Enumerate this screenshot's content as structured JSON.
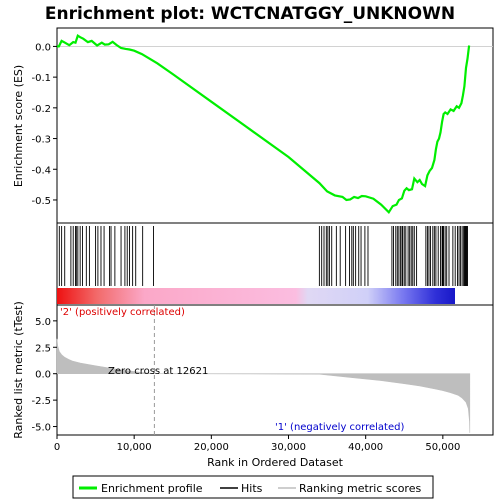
{
  "chart_data": {
    "type": "line",
    "title": "Enrichment plot: WCTCNATGGY_UNKNOWN",
    "xlabel": "Rank in Ordered Dataset",
    "ylabel_top": "Enrichment score (ES)",
    "ylabel_bottom": "Ranked list metric (tTest)",
    "x_ticks": [
      "0",
      "10,000",
      "20,000",
      "30,000",
      "40,000",
      "50,000"
    ],
    "x_tick_values": [
      0,
      10000,
      20000,
      30000,
      40000,
      50000
    ],
    "es_y_ticks": [
      "0.0",
      "-0.1",
      "-0.2",
      "-0.3",
      "-0.4",
      "-0.5"
    ],
    "es_y_tick_values": [
      0.0,
      -0.1,
      -0.2,
      -0.3,
      -0.4,
      -0.5
    ],
    "metric_y_ticks": [
      "5.0",
      "2.5",
      "0.0",
      "-2.5",
      "-5.0"
    ],
    "metric_y_tick_values": [
      5.0,
      2.5,
      0.0,
      -2.5,
      -5.0
    ],
    "xlim": [
      0,
      56500
    ],
    "es_ylim": [
      -0.575,
      0.06
    ],
    "metric_ylim": [
      -5.8,
      6.5
    ],
    "zero_cross_rank": 12621,
    "zero_cross_label": "Zero cross at 12621",
    "positive_label": "'2' (positively correlated)",
    "negative_label": "'1' (negatively correlated)",
    "legend": [
      "Enrichment profile",
      "Hits",
      "Ranking metric scores"
    ],
    "colors": {
      "enrichment": "#00ee00",
      "hits": "#000000",
      "metric_fill": "#bebebe",
      "positive_text": "#dd0000",
      "negative_text": "#0000cc"
    },
    "series": [
      {
        "name": "Enrichment profile",
        "x": [
          0,
          250,
          600,
          900,
          1600,
          2100,
          2400,
          2700,
          3000,
          3400,
          4000,
          4500,
          5200,
          5800,
          6200,
          6700,
          7200,
          7700,
          8300,
          8900,
          9400,
          10000,
          11000,
          12000,
          13000,
          15000,
          20000,
          25000,
          30000,
          34000,
          35000,
          36000,
          37000,
          37500,
          38000,
          38500,
          39000,
          39500,
          40000,
          40500,
          41000,
          42000,
          43000,
          43500,
          44000,
          44300,
          44700,
          45000,
          45300,
          45600,
          46000,
          46300,
          46700,
          47000,
          47300,
          47700,
          48000,
          48300,
          48600,
          48900,
          49100,
          49300,
          49500,
          49700,
          49900,
          50100,
          50300,
          50600,
          51000,
          51400,
          51800,
          52100,
          52400,
          52600,
          52800,
          53000,
          53200,
          53400
        ],
        "values": [
          0.0,
          0.0,
          0.018,
          0.014,
          0.004,
          0.014,
          0.012,
          0.035,
          0.03,
          0.025,
          0.014,
          0.018,
          0.003,
          0.012,
          0.006,
          0.007,
          0.015,
          0.005,
          -0.005,
          -0.008,
          -0.01,
          -0.014,
          -0.025,
          -0.04,
          -0.055,
          -0.09,
          -0.18,
          -0.27,
          -0.36,
          -0.445,
          -0.472,
          -0.485,
          -0.49,
          -0.5,
          -0.498,
          -0.49,
          -0.494,
          -0.487,
          -0.488,
          -0.492,
          -0.496,
          -0.515,
          -0.54,
          -0.52,
          -0.515,
          -0.5,
          -0.495,
          -0.47,
          -0.462,
          -0.468,
          -0.465,
          -0.43,
          -0.442,
          -0.435,
          -0.448,
          -0.455,
          -0.42,
          -0.405,
          -0.396,
          -0.37,
          -0.335,
          -0.31,
          -0.3,
          -0.28,
          -0.245,
          -0.22,
          -0.215,
          -0.22,
          -0.205,
          -0.21,
          -0.195,
          -0.2,
          -0.185,
          -0.16,
          -0.13,
          -0.07,
          -0.04,
          0.003
        ]
      },
      {
        "name": "Ranking metric scores",
        "x": [
          0,
          100,
          300,
          600,
          1000,
          1500,
          2000,
          3000,
          5000,
          8000,
          11000,
          12621,
          34000,
          38000,
          42000,
          45000,
          47000,
          48000,
          49000,
          50000,
          51000,
          52000,
          52500,
          53000,
          53300,
          53450,
          53500
        ],
        "values": [
          3.3,
          2.6,
          2.1,
          1.8,
          1.55,
          1.35,
          1.2,
          1.0,
          0.75,
          0.4,
          0.1,
          0.0,
          -0.05,
          -0.35,
          -0.65,
          -0.95,
          -1.15,
          -1.3,
          -1.45,
          -1.6,
          -1.8,
          -2.05,
          -2.3,
          -2.7,
          -3.3,
          -4.5,
          -5.6
        ]
      }
    ],
    "hits": [
      300,
      600,
      1000,
      1800,
      2100,
      2400,
      2500,
      2700,
      3000,
      3300,
      3800,
      4200,
      5000,
      5300,
      5700,
      6100,
      6800,
      7000,
      7500,
      8300,
      8800,
      9100,
      9400,
      9800,
      10200,
      11100,
      12500,
      34000,
      34300,
      34600,
      34900,
      35100,
      35300,
      35600,
      36200,
      36700,
      37400,
      37900,
      38200,
      38400,
      38700,
      39100,
      39400,
      39900,
      40300,
      43400,
      43600,
      43900,
      44100,
      44300,
      44500,
      44700,
      44800,
      45000,
      45200,
      45500,
      45700,
      45900,
      46100,
      46300,
      46600,
      47800,
      48000,
      48200,
      48400,
      48700,
      48900,
      49100,
      49400,
      49700,
      49900,
      50000,
      50100,
      50300,
      50500,
      50800,
      51300,
      51600,
      51900,
      52100,
      52300,
      52500,
      52700,
      52800,
      52900,
      53000,
      53100,
      53200
    ]
  }
}
